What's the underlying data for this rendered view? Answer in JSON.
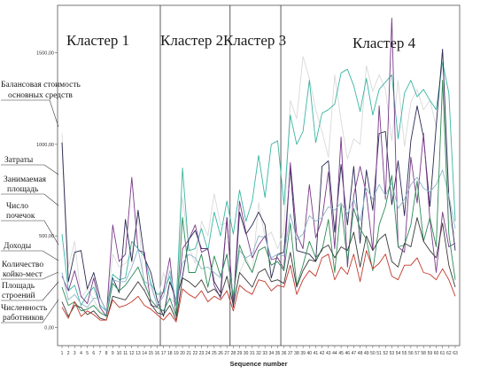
{
  "chart_data": {
    "type": "line",
    "xlabel": "Sequence number",
    "ylabel": "",
    "ylim": [
      -90,
      1750
    ],
    "yticks": [
      "0,00",
      "500,00",
      "1000,00",
      "1500,00"
    ],
    "yticks_values": [
      0,
      500,
      1000,
      1500
    ],
    "x": [
      1,
      2,
      3,
      4,
      5,
      6,
      7,
      8,
      9,
      10,
      11,
      12,
      13,
      14,
      15,
      16,
      17,
      18,
      19,
      20,
      21,
      22,
      23,
      24,
      25,
      26,
      27,
      28,
      29,
      30,
      31,
      32,
      33,
      34,
      35,
      36,
      37,
      38,
      39,
      40,
      41,
      42,
      43,
      44,
      45,
      46,
      47,
      48,
      49,
      50,
      51,
      52,
      53,
      54,
      55,
      56,
      57,
      58,
      59,
      60,
      61,
      62,
      63
    ],
    "xtick_labels": [
      "1",
      "2",
      "3",
      "4",
      "5",
      "6",
      "7",
      "8",
      "9",
      "10",
      "11",
      "12",
      "13",
      "14",
      "15",
      "16",
      "17",
      "18",
      "19",
      "20",
      "21",
      "22",
      "23",
      "24",
      "25",
      "26",
      "27",
      "28",
      "29",
      "30",
      "31",
      "32",
      "33",
      "34",
      "35",
      "36",
      "37",
      "38",
      "39",
      "40",
      "41",
      "42",
      "43",
      "44",
      "45",
      "46",
      "47",
      "48",
      "49",
      "50",
      "51",
      "52",
      "53",
      "54",
      "55",
      "56",
      "57",
      "58",
      "59",
      "60",
      "61",
      "62",
      "63"
    ],
    "cluster_separators_after": [
      16,
      27,
      35
    ],
    "clusters": [
      "Кластер 1",
      "Кластер 2",
      "Кластер 3",
      "Кластер 4"
    ],
    "side_labels": [
      [
        "Балансовая стоимость",
        "основных средств"
      ],
      [
        "Затраты"
      ],
      [
        "Занимаемая",
        "площадь"
      ],
      [
        "Число",
        "почечок"
      ],
      [
        "Доходы"
      ],
      [
        "Количество",
        "койко-мест"
      ],
      [
        "Площадь",
        "строений"
      ],
      [
        "Численность",
        "работников"
      ]
    ],
    "series": [
      {
        "color": "#d9d9d9",
        "values": [
          1060,
          330,
          470,
          160,
          210,
          150,
          85,
          70,
          400,
          330,
          350,
          400,
          620,
          200,
          250,
          120,
          300,
          160,
          130,
          710,
          440,
          350,
          580,
          500,
          730,
          560,
          570,
          140,
          300,
          380,
          300,
          680,
          490,
          520,
          430,
          530,
          1240,
          1140,
          1480,
          1360,
          1190,
          1070,
          930,
          1380,
          1130,
          920,
          1030,
          1000,
          1430,
          1290,
          1380,
          1300,
          1020,
          1350,
          990,
          1230,
          1300,
          1190,
          1240,
          1100,
          1500,
          580,
          510
        ]
      },
      {
        "color": "#3ab5a3",
        "values": [
          510,
          200,
          230,
          120,
          180,
          220,
          120,
          90,
          290,
          260,
          270,
          470,
          430,
          390,
          240,
          180,
          190,
          280,
          120,
          870,
          420,
          430,
          540,
          420,
          630,
          500,
          690,
          510,
          750,
          580,
          690,
          940,
          710,
          1000,
          1020,
          670,
          1160,
          1000,
          1070,
          1350,
          1010,
          1170,
          1190,
          1220,
          1390,
          1410,
          1320,
          1180,
          1360,
          1160,
          1300,
          1340,
          1380,
          1030,
          1280,
          1350,
          1260,
          1300,
          1240,
          1190,
          1450,
          1280,
          580
        ]
      },
      {
        "color": "#2a2a55",
        "values": [
          1010,
          250,
          410,
          420,
          210,
          300,
          160,
          90,
          270,
          190,
          590,
          360,
          640,
          380,
          300,
          150,
          60,
          250,
          150,
          280,
          480,
          530,
          430,
          430,
          250,
          190,
          600,
          110,
          630,
          510,
          560,
          630,
          560,
          270,
          400,
          410,
          870,
          420,
          410,
          400,
          360,
          880,
          910,
          520,
          890,
          560,
          880,
          460,
          860,
          640,
          1060,
          1070,
          670,
          910,
          610,
          1020,
          1210,
          1040,
          660,
          1100,
          1520,
          710,
          420
        ]
      },
      {
        "color": "#7a3a8a",
        "values": [
          280,
          200,
          310,
          170,
          130,
          270,
          110,
          60,
          560,
          360,
          400,
          820,
          420,
          410,
          120,
          110,
          200,
          380,
          60,
          430,
          480,
          560,
          410,
          430,
          230,
          160,
          600,
          120,
          690,
          520,
          380,
          450,
          500,
          370,
          380,
          320,
          900,
          510,
          430,
          780,
          490,
          590,
          850,
          430,
          1040,
          330,
          720,
          880,
          730,
          420,
          1210,
          700,
          1690,
          440,
          410,
          930,
          680,
          1060,
          590,
          300,
          630,
          440,
          460
        ]
      },
      {
        "color": "#8fb7c9",
        "values": [
          300,
          150,
          180,
          130,
          110,
          160,
          160,
          90,
          260,
          250,
          250,
          330,
          430,
          250,
          230,
          120,
          170,
          310,
          140,
          350,
          400,
          380,
          320,
          330,
          300,
          270,
          400,
          180,
          420,
          380,
          400,
          500,
          490,
          380,
          400,
          390,
          620,
          480,
          510,
          610,
          580,
          600,
          660,
          640,
          680,
          620,
          700,
          580,
          760,
          700,
          780,
          720,
          790,
          650,
          700,
          780,
          820,
          760,
          740,
          780,
          860,
          720,
          540
        ]
      },
      {
        "color": "#2e8b57",
        "values": [
          220,
          120,
          140,
          90,
          100,
          120,
          80,
          60,
          240,
          200,
          230,
          280,
          330,
          240,
          150,
          110,
          90,
          160,
          60,
          600,
          300,
          300,
          400,
          220,
          390,
          280,
          400,
          160,
          450,
          360,
          300,
          420,
          440,
          340,
          360,
          310,
          570,
          230,
          340,
          470,
          380,
          420,
          590,
          300,
          670,
          360,
          650,
          540,
          480,
          310,
          560,
          660,
          830,
          440,
          450,
          560,
          800,
          470,
          600,
          440,
          1350,
          510,
          260
        ]
      },
      {
        "color": "#3a3a3a",
        "values": [
          140,
          60,
          120,
          110,
          70,
          90,
          50,
          40,
          170,
          160,
          150,
          200,
          250,
          200,
          130,
          80,
          70,
          120,
          40,
          270,
          250,
          220,
          260,
          190,
          210,
          170,
          280,
          120,
          300,
          260,
          220,
          300,
          320,
          250,
          260,
          240,
          410,
          220,
          310,
          370,
          360,
          430,
          450,
          380,
          440,
          420,
          520,
          330,
          500,
          420,
          480,
          510,
          360,
          330,
          460,
          440,
          600,
          470,
          420,
          380,
          570,
          340,
          220
        ]
      },
      {
        "color": "#c0392b",
        "values": [
          110,
          50,
          140,
          60,
          90,
          70,
          40,
          40,
          150,
          110,
          120,
          140,
          170,
          120,
          100,
          70,
          40,
          80,
          30,
          210,
          180,
          160,
          200,
          140,
          170,
          150,
          200,
          90,
          230,
          200,
          180,
          260,
          250,
          200,
          230,
          220,
          340,
          180,
          260,
          310,
          280,
          380,
          400,
          260,
          330,
          290,
          400,
          250,
          420,
          320,
          350,
          400,
          280,
          260,
          340,
          340,
          380,
          300,
          290,
          260,
          320,
          260,
          170
        ]
      }
    ]
  }
}
